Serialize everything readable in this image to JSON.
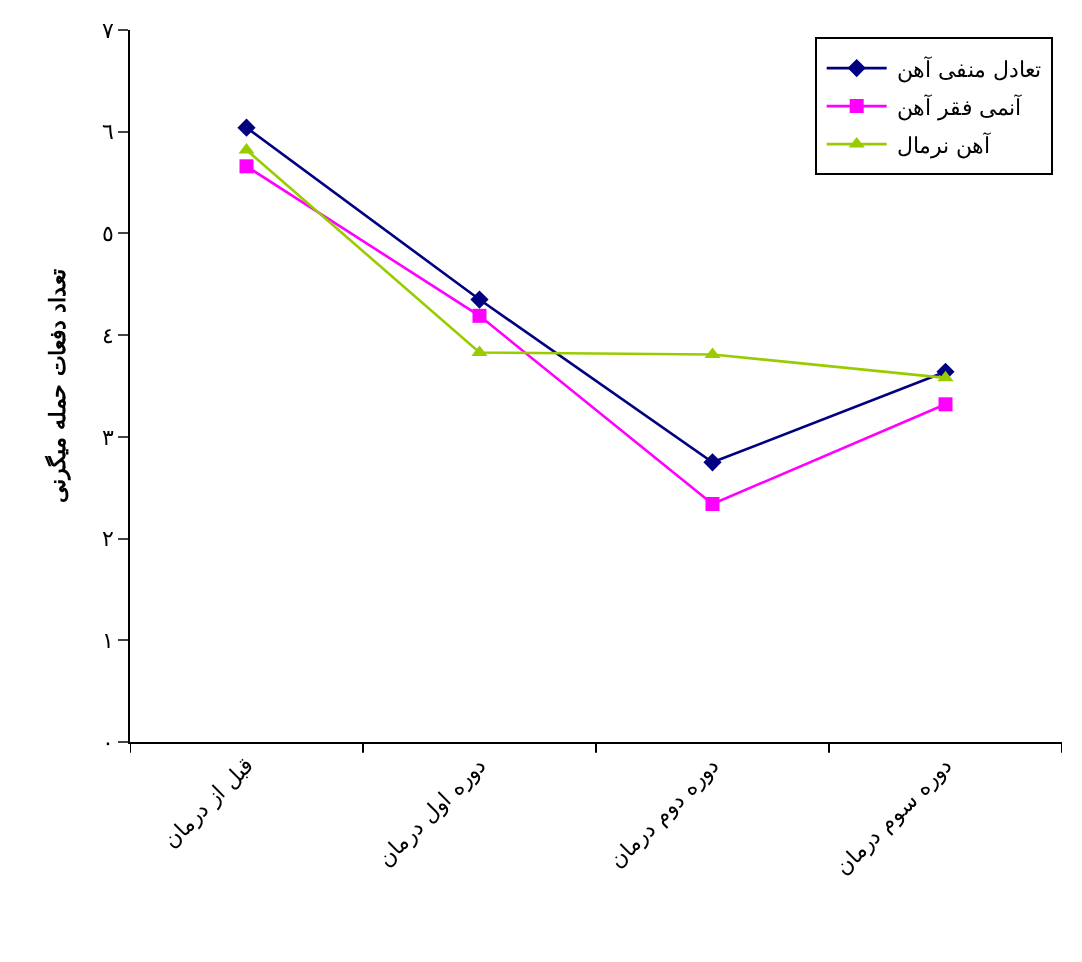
{
  "chart_data": {
    "type": "line",
    "ylabel": "تعداد دفعات حمله میگرنی",
    "categories": [
      "قبل از درمان",
      "دوره اول درمان",
      "دوره دوم درمان",
      "دوره سوم درمان"
    ],
    "series": [
      {
        "name": "تعادل منفی آهن",
        "color": "#000080",
        "marker": "diamond",
        "values": [
          6.04,
          4.35,
          2.75,
          3.64
        ]
      },
      {
        "name": "آنمی فقر آهن",
        "color": "#ff00ff",
        "marker": "square",
        "values": [
          5.66,
          4.19,
          2.34,
          3.32
        ]
      },
      {
        "name": "آهن نرمال",
        "color": "#99cc00",
        "marker": "triangle",
        "values": [
          5.82,
          3.83,
          3.81,
          3.58
        ]
      }
    ],
    "ylim": [
      0,
      7
    ],
    "yticks": [
      {
        "value": 0,
        "label": "٠"
      },
      {
        "value": 1,
        "label": "١"
      },
      {
        "value": 2,
        "label": "٢"
      },
      {
        "value": 3,
        "label": "٣"
      },
      {
        "value": 4,
        "label": "٤"
      },
      {
        "value": 5,
        "label": "٥"
      },
      {
        "value": 6,
        "label": "٦"
      },
      {
        "value": 7,
        "label": "٧"
      }
    ],
    "legend": "top right",
    "line_style": "solid"
  }
}
